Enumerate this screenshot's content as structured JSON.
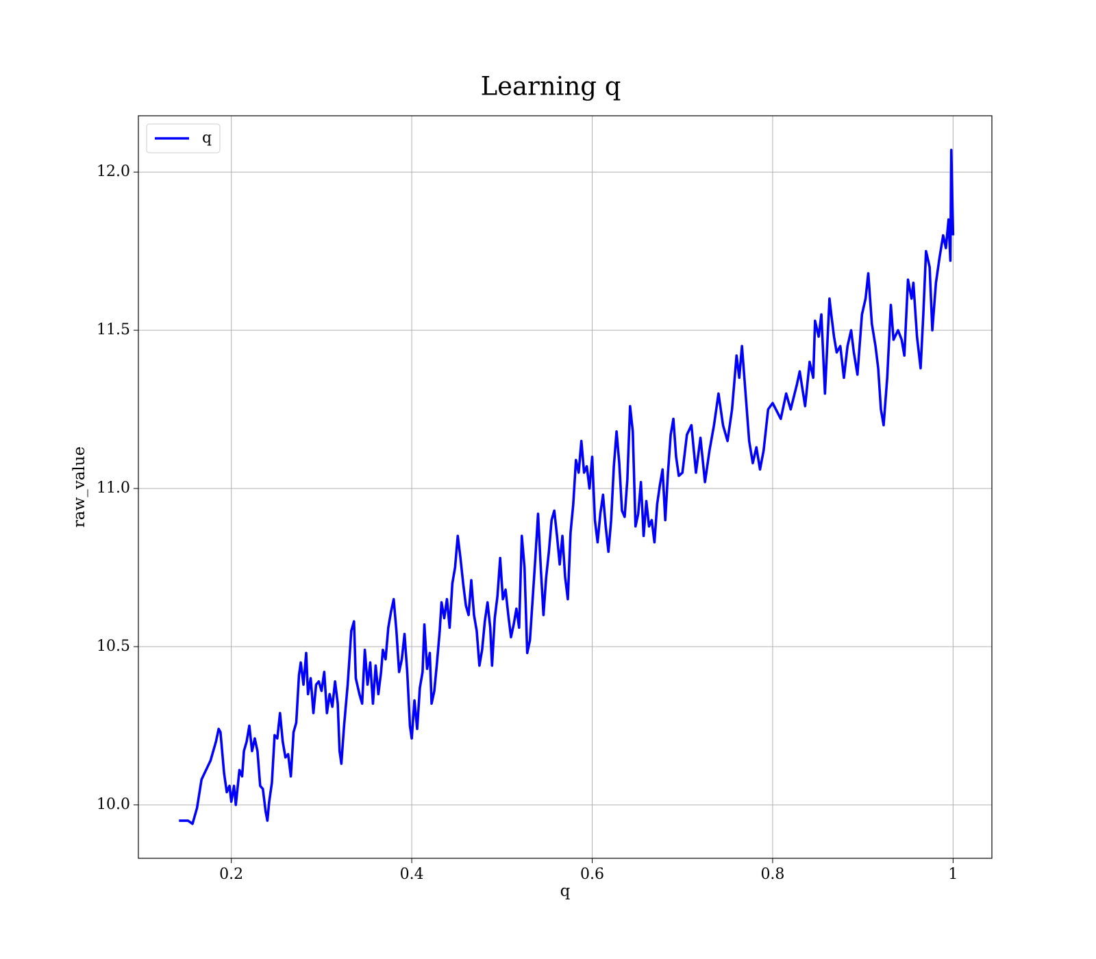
{
  "chart_data": {
    "type": "line",
    "title": "Learning q",
    "xlabel": "q",
    "ylabel": "raw_value",
    "x": [
      0.142,
      0.152,
      0.157,
      0.162,
      0.167,
      0.172,
      0.177,
      0.183,
      0.186,
      0.188,
      0.192,
      0.195,
      0.198,
      0.2,
      0.203,
      0.205,
      0.209,
      0.212,
      0.214,
      0.217,
      0.22,
      0.223,
      0.226,
      0.229,
      0.232,
      0.235,
      0.238,
      0.24,
      0.242,
      0.245,
      0.248,
      0.251,
      0.254,
      0.257,
      0.26,
      0.263,
      0.266,
      0.269,
      0.272,
      0.275,
      0.277,
      0.28,
      0.283,
      0.285,
      0.288,
      0.291,
      0.294,
      0.297,
      0.3,
      0.303,
      0.306,
      0.309,
      0.312,
      0.315,
      0.318,
      0.32,
      0.322,
      0.325,
      0.329,
      0.333,
      0.336,
      0.338,
      0.342,
      0.345,
      0.348,
      0.351,
      0.354,
      0.357,
      0.36,
      0.363,
      0.366,
      0.368,
      0.371,
      0.374,
      0.377,
      0.38,
      0.383,
      0.386,
      0.389,
      0.392,
      0.395,
      0.398,
      0.4,
      0.403,
      0.406,
      0.409,
      0.412,
      0.414,
      0.417,
      0.42,
      0.422,
      0.425,
      0.428,
      0.431,
      0.433,
      0.436,
      0.439,
      0.442,
      0.445,
      0.448,
      0.451,
      0.454,
      0.457,
      0.46,
      0.463,
      0.466,
      0.469,
      0.472,
      0.475,
      0.478,
      0.481,
      0.484,
      0.487,
      0.489,
      0.492,
      0.495,
      0.498,
      0.501,
      0.504,
      0.507,
      0.51,
      0.513,
      0.516,
      0.519,
      0.522,
      0.525,
      0.528,
      0.531,
      0.534,
      0.537,
      0.54,
      0.543,
      0.546,
      0.549,
      0.552,
      0.555,
      0.558,
      0.561,
      0.564,
      0.567,
      0.57,
      0.573,
      0.576,
      0.579,
      0.582,
      0.585,
      0.588,
      0.591,
      0.594,
      0.597,
      0.6,
      0.603,
      0.606,
      0.609,
      0.612,
      0.615,
      0.618,
      0.621,
      0.624,
      0.627,
      0.63,
      0.633,
      0.636,
      0.639,
      0.642,
      0.645,
      0.648,
      0.651,
      0.654,
      0.657,
      0.66,
      0.663,
      0.666,
      0.669,
      0.672,
      0.675,
      0.678,
      0.681,
      0.684,
      0.687,
      0.69,
      0.693,
      0.696,
      0.7,
      0.705,
      0.71,
      0.715,
      0.72,
      0.725,
      0.73,
      0.735,
      0.74,
      0.745,
      0.75,
      0.755,
      0.76,
      0.763,
      0.766,
      0.77,
      0.774,
      0.778,
      0.782,
      0.786,
      0.79,
      0.795,
      0.8,
      0.809,
      0.815,
      0.82,
      0.827,
      0.83,
      0.836,
      0.841,
      0.845,
      0.847,
      0.851,
      0.854,
      0.858,
      0.863,
      0.865,
      0.868,
      0.871,
      0.875,
      0.879,
      0.883,
      0.887,
      0.89,
      0.894,
      0.899,
      0.903,
      0.906,
      0.91,
      0.914,
      0.917,
      0.92,
      0.923,
      0.927,
      0.931,
      0.934,
      0.939,
      0.943,
      0.946,
      0.95,
      0.954,
      0.956,
      0.96,
      0.964,
      0.967,
      0.97,
      0.974,
      0.977,
      0.981,
      0.985,
      0.989,
      0.992,
      0.995,
      0.997,
      0.998,
      1.0
    ],
    "series": [
      {
        "name": "q",
        "color": "#0000ff",
        "values": [
          9.95,
          9.95,
          9.94,
          9.99,
          10.08,
          10.11,
          10.14,
          10.2,
          10.24,
          10.23,
          10.1,
          10.04,
          10.06,
          10.01,
          10.06,
          10.0,
          10.11,
          10.09,
          10.17,
          10.2,
          10.25,
          10.17,
          10.21,
          10.17,
          10.06,
          10.05,
          9.98,
          9.95,
          10.01,
          10.07,
          10.22,
          10.21,
          10.29,
          10.2,
          10.15,
          10.16,
          10.09,
          10.23,
          10.26,
          10.41,
          10.45,
          10.38,
          10.48,
          10.35,
          10.4,
          10.29,
          10.38,
          10.39,
          10.36,
          10.42,
          10.29,
          10.35,
          10.31,
          10.39,
          10.32,
          10.17,
          10.13,
          10.25,
          10.38,
          10.55,
          10.58,
          10.4,
          10.35,
          10.32,
          10.49,
          10.38,
          10.45,
          10.32,
          10.44,
          10.35,
          10.42,
          10.49,
          10.46,
          10.56,
          10.61,
          10.65,
          10.55,
          10.42,
          10.46,
          10.54,
          10.42,
          10.25,
          10.21,
          10.33,
          10.24,
          10.37,
          10.42,
          10.57,
          10.43,
          10.48,
          10.32,
          10.36,
          10.45,
          10.55,
          10.64,
          10.59,
          10.65,
          10.56,
          10.7,
          10.75,
          10.85,
          10.78,
          10.7,
          10.63,
          10.6,
          10.71,
          10.6,
          10.55,
          10.44,
          10.49,
          10.58,
          10.64,
          10.56,
          10.44,
          10.59,
          10.66,
          10.78,
          10.65,
          10.68,
          10.6,
          10.53,
          10.57,
          10.62,
          10.56,
          10.85,
          10.75,
          10.48,
          10.52,
          10.65,
          10.78,
          10.92,
          10.75,
          10.6,
          10.72,
          10.8,
          10.9,
          10.93,
          10.85,
          10.76,
          10.85,
          10.72,
          10.65,
          10.86,
          10.95,
          11.09,
          11.05,
          11.15,
          11.05,
          11.07,
          11.0,
          11.1,
          10.9,
          10.83,
          10.92,
          10.98,
          10.88,
          10.8,
          10.9,
          11.07,
          11.18,
          11.08,
          10.93,
          10.91,
          11.03,
          11.26,
          11.18,
          10.88,
          10.92,
          11.02,
          10.85,
          10.96,
          10.88,
          10.9,
          10.83,
          10.95,
          11.01,
          11.06,
          10.9,
          11.05,
          11.17,
          11.22,
          11.1,
          11.04,
          11.05,
          11.17,
          11.2,
          11.05,
          11.16,
          11.02,
          11.12,
          11.2,
          11.3,
          11.2,
          11.15,
          11.25,
          11.42,
          11.35,
          11.45,
          11.3,
          11.15,
          11.08,
          11.13,
          11.06,
          11.12,
          11.25,
          11.27,
          11.22,
          11.3,
          11.25,
          11.33,
          11.37,
          11.26,
          11.4,
          11.35,
          11.53,
          11.48,
          11.55,
          11.3,
          11.6,
          11.55,
          11.48,
          11.43,
          11.45,
          11.35,
          11.45,
          11.5,
          11.43,
          11.36,
          11.55,
          11.6,
          11.68,
          11.52,
          11.45,
          11.38,
          11.25,
          11.2,
          11.35,
          11.58,
          11.47,
          11.5,
          11.47,
          11.42,
          11.66,
          11.6,
          11.65,
          11.48,
          11.38,
          11.55,
          11.75,
          11.7,
          11.5,
          11.65,
          11.73,
          11.8,
          11.76,
          11.85,
          11.72,
          12.07,
          11.8
        ]
      }
    ],
    "xlim": [
      0.097,
      1.043
    ],
    "ylim": [
      9.831,
      12.178
    ],
    "xticks": [
      0.2,
      0.4,
      0.6,
      0.8,
      1.0
    ],
    "yticks": [
      {
        "value": 10,
        "label": "10.0"
      },
      10.5,
      {
        "value": 11,
        "label": "11.0"
      },
      11.5,
      {
        "value": 12,
        "label": "12.0"
      }
    ],
    "grid": true,
    "legend": "upper left"
  }
}
